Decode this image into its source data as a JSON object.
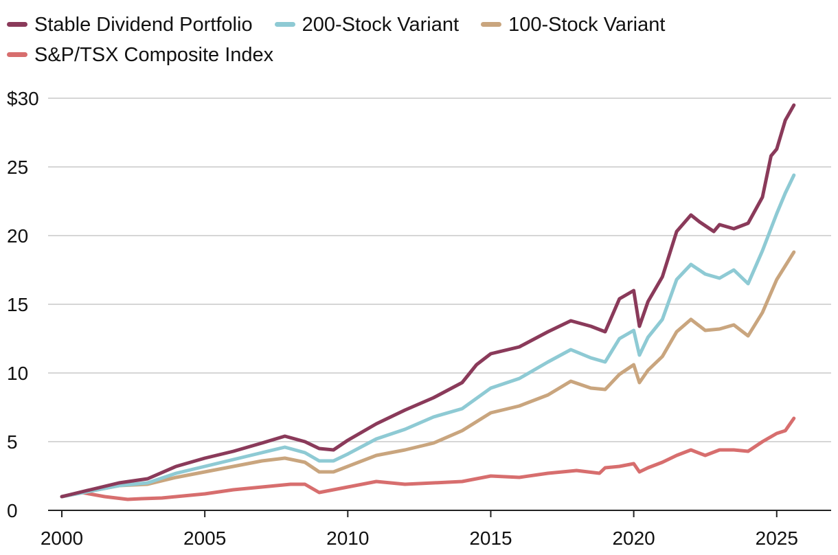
{
  "colors": {
    "stable": "#8a3a5a",
    "v200": "#8ecad4",
    "v100": "#c9a57e",
    "tsx": "#d76e6e",
    "grid": "#c8c8c8",
    "axis": "#222222"
  },
  "legend": [
    {
      "label": "Stable Dividend Portfolio",
      "color_key": "stable"
    },
    {
      "label": "200-Stock Variant",
      "color_key": "v200"
    },
    {
      "label": "100-Stock Variant",
      "color_key": "v100"
    },
    {
      "label": "S&P/TSX Composite Index",
      "color_key": "tsx"
    }
  ],
  "chart_data": {
    "type": "line",
    "title": "",
    "xlabel": "",
    "ylabel": "",
    "xlim": [
      2000,
      2025.75
    ],
    "ylim": [
      0,
      30
    ],
    "x_ticks": [
      2000,
      2005,
      2010,
      2015,
      2020,
      2025
    ],
    "x_tick_labels": [
      "2000",
      "2005",
      "2010",
      "2015",
      "2020",
      "2025"
    ],
    "y_ticks": [
      0,
      5,
      10,
      15,
      20,
      25,
      30
    ],
    "y_tick_labels": [
      "0",
      "5",
      "10",
      "15",
      "20",
      "25",
      "$30"
    ],
    "grid": true,
    "legend_position": "top-left",
    "series": [
      {
        "name": "Stable Dividend Portfolio",
        "color_key": "stable",
        "x": [
          2000,
          2001,
          2002,
          2003,
          2004,
          2005,
          2006,
          2007,
          2007.8,
          2008.5,
          2009,
          2009.5,
          2010,
          2011,
          2012,
          2013,
          2014,
          2014.5,
          2015,
          2016,
          2017,
          2017.8,
          2018.5,
          2019,
          2019.5,
          2020,
          2020.2,
          2020.5,
          2021,
          2021.5,
          2022,
          2022.3,
          2022.8,
          2023,
          2023.5,
          2024,
          2024.5,
          2024.8,
          2025,
          2025.3,
          2025.6
        ],
        "values": [
          1,
          1.5,
          2,
          2.3,
          3.2,
          3.8,
          4.3,
          4.9,
          5.4,
          5,
          4.5,
          4.4,
          5.1,
          6.3,
          7.3,
          8.2,
          9.3,
          10.6,
          11.4,
          11.9,
          13,
          13.8,
          13.4,
          13,
          15.4,
          16,
          13.4,
          15.2,
          17,
          20.3,
          21.5,
          21,
          20.3,
          20.8,
          20.5,
          20.9,
          22.8,
          25.8,
          26.3,
          28.4,
          29.5
        ]
      },
      {
        "name": "200-Stock Variant",
        "color_key": "v200",
        "x": [
          2000,
          2001,
          2002,
          2003,
          2004,
          2005,
          2006,
          2007,
          2007.8,
          2008.5,
          2009,
          2009.5,
          2010,
          2011,
          2012,
          2013,
          2014,
          2015,
          2016,
          2017,
          2017.8,
          2018.5,
          2019,
          2019.5,
          2020,
          2020.2,
          2020.5,
          2021,
          2021.5,
          2022,
          2022.5,
          2023,
          2023.5,
          2024,
          2024.5,
          2025,
          2025.3,
          2025.6
        ],
        "values": [
          1,
          1.4,
          1.8,
          2,
          2.7,
          3.2,
          3.7,
          4.2,
          4.6,
          4.2,
          3.6,
          3.6,
          4.1,
          5.2,
          5.9,
          6.8,
          7.4,
          8.9,
          9.6,
          10.8,
          11.7,
          11.1,
          10.8,
          12.5,
          13.1,
          11.3,
          12.6,
          13.9,
          16.8,
          17.9,
          17.2,
          16.9,
          17.5,
          16.5,
          18.9,
          21.6,
          23.1,
          24.4
        ]
      },
      {
        "name": "100-Stock Variant",
        "color_key": "v100",
        "x": [
          2000,
          2001,
          2002,
          2003,
          2004,
          2005,
          2006,
          2007,
          2007.8,
          2008.5,
          2009,
          2009.5,
          2010,
          2011,
          2012,
          2013,
          2014,
          2015,
          2016,
          2017,
          2017.8,
          2018.5,
          2019,
          2019.5,
          2020,
          2020.2,
          2020.5,
          2021,
          2021.5,
          2022,
          2022.5,
          2023,
          2023.5,
          2024,
          2024.5,
          2025,
          2025.3,
          2025.6
        ],
        "values": [
          1,
          1.4,
          1.8,
          1.9,
          2.4,
          2.8,
          3.2,
          3.6,
          3.8,
          3.5,
          2.8,
          2.8,
          3.2,
          4,
          4.4,
          4.9,
          5.8,
          7.1,
          7.6,
          8.4,
          9.4,
          8.9,
          8.8,
          9.9,
          10.6,
          9.3,
          10.2,
          11.2,
          13,
          13.9,
          13.1,
          13.2,
          13.5,
          12.7,
          14.4,
          16.8,
          17.8,
          18.8
        ]
      },
      {
        "name": "S&P/TSX Composite Index",
        "color_key": "tsx",
        "x": [
          2000,
          2000.7,
          2001.5,
          2002.3,
          2002.8,
          2003.5,
          2004,
          2005,
          2006,
          2007,
          2008,
          2008.5,
          2009,
          2009.5,
          2010,
          2011,
          2012,
          2013,
          2014,
          2015,
          2016,
          2017,
          2018,
          2018.8,
          2019,
          2019.5,
          2020,
          2020.2,
          2020.5,
          2021,
          2021.5,
          2022,
          2022.5,
          2023,
          2023.5,
          2024,
          2024.5,
          2025,
          2025.3,
          2025.6
        ],
        "values": [
          1,
          1.3,
          1,
          0.8,
          0.85,
          0.9,
          1,
          1.2,
          1.5,
          1.7,
          1.9,
          1.9,
          1.3,
          1.5,
          1.7,
          2.1,
          1.9,
          2,
          2.1,
          2.5,
          2.4,
          2.7,
          2.9,
          2.7,
          3.1,
          3.2,
          3.4,
          2.8,
          3.1,
          3.5,
          4,
          4.4,
          4,
          4.4,
          4.4,
          4.3,
          5,
          5.6,
          5.8,
          6.7
        ]
      }
    ]
  }
}
